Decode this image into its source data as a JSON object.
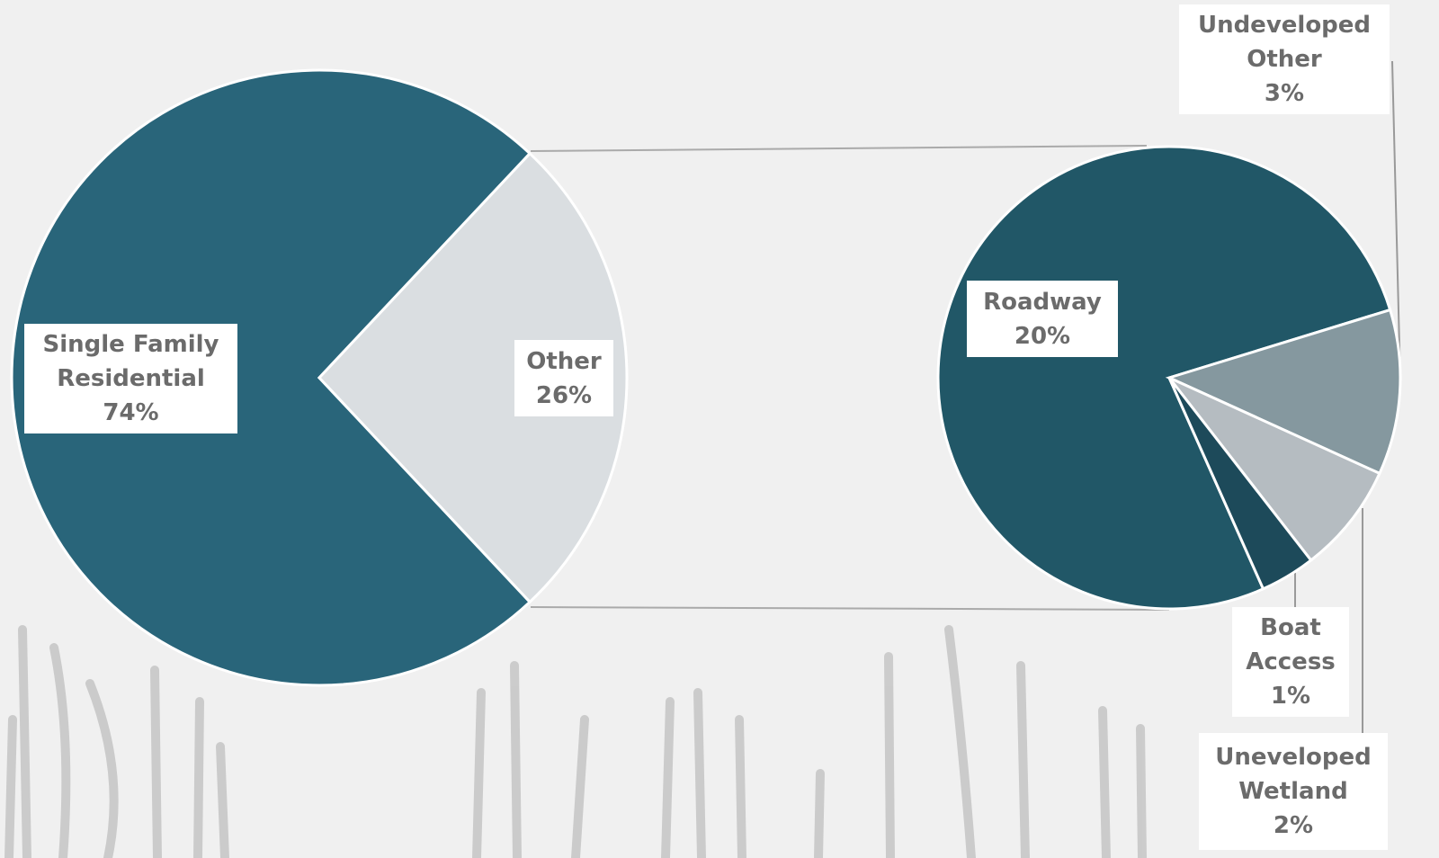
{
  "chart_data": [
    {
      "type": "pie",
      "categories": [
        "Single Family Residential",
        "Other"
      ],
      "values": [
        74,
        26
      ],
      "value_labels": [
        "74%",
        "26%"
      ],
      "colors": [
        "#29657a",
        "#dadee1"
      ]
    },
    {
      "type": "pie",
      "categories": [
        "Roadway",
        "Undeveloped Other",
        "Uneveloped Wetland",
        "Boat Access"
      ],
      "values": [
        20,
        3,
        2,
        1
      ],
      "value_labels": [
        "20%",
        "3%",
        "2%",
        "1%"
      ],
      "colors": [
        "#215767",
        "#85989f",
        "#b5bcc1",
        "#1d4a5a"
      ]
    }
  ]
}
